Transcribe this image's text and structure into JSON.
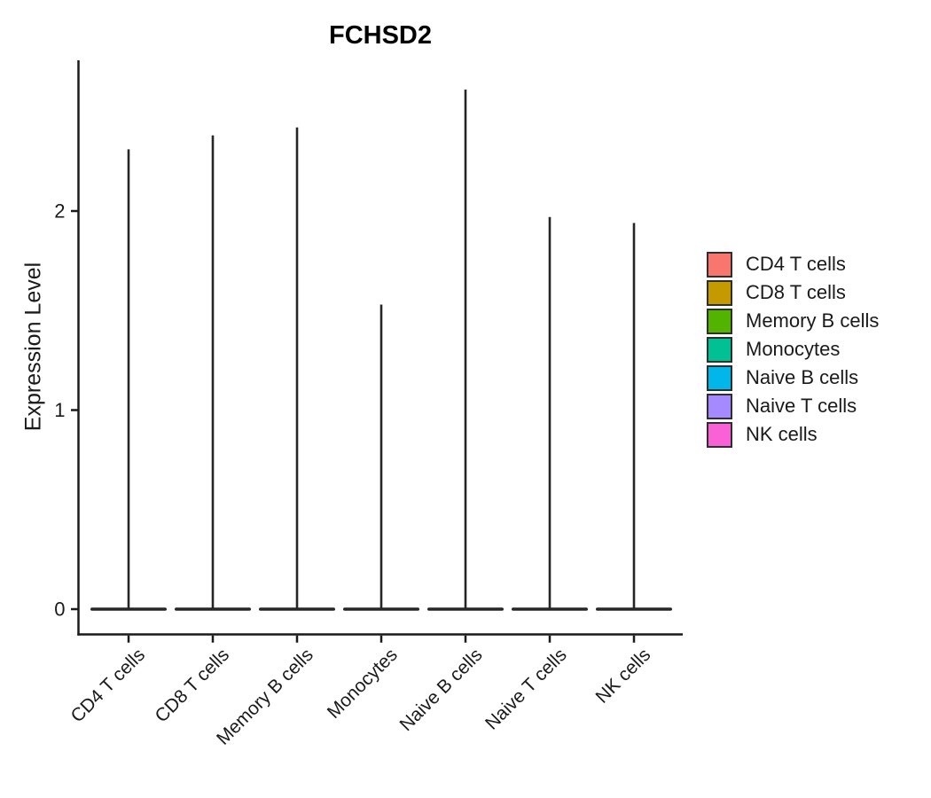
{
  "chart_data": {
    "type": "violin",
    "title": "FCHSD2",
    "ylabel": "Expression Level",
    "yticks": [
      0,
      1,
      2
    ],
    "ylim": [
      -0.12,
      2.76
    ],
    "grid": false,
    "legend_position": "right",
    "violin_shape": "density concentrated at 0 (wide flat base) with a thin vertical tail extending to the maximum expression value",
    "categories": [
      "CD4 T cells",
      "CD8 T cells",
      "Memory B cells",
      "Monocytes",
      "Naive B cells",
      "Naive T cells",
      "NK cells"
    ],
    "series": [
      {
        "name": "CD4 T cells",
        "color": "#F8766D",
        "base_value": 0,
        "max": 2.31
      },
      {
        "name": "CD8 T cells",
        "color": "#C49A00",
        "base_value": 0,
        "max": 2.38
      },
      {
        "name": "Memory B cells",
        "color": "#53B400",
        "base_value": 0,
        "max": 2.42
      },
      {
        "name": "Monocytes",
        "color": "#00C094",
        "base_value": 0,
        "max": 1.53
      },
      {
        "name": "Naive B cells",
        "color": "#00B6EB",
        "base_value": 0,
        "max": 2.61
      },
      {
        "name": "Naive T cells",
        "color": "#A58AFF",
        "base_value": 0,
        "max": 1.97
      },
      {
        "name": "NK cells",
        "color": "#FB61D7",
        "base_value": 0,
        "max": 1.94
      }
    ],
    "colors": {
      "axis": "#1a1a1a",
      "violin_outline": "#262626",
      "text": "#1a1a1a"
    }
  }
}
